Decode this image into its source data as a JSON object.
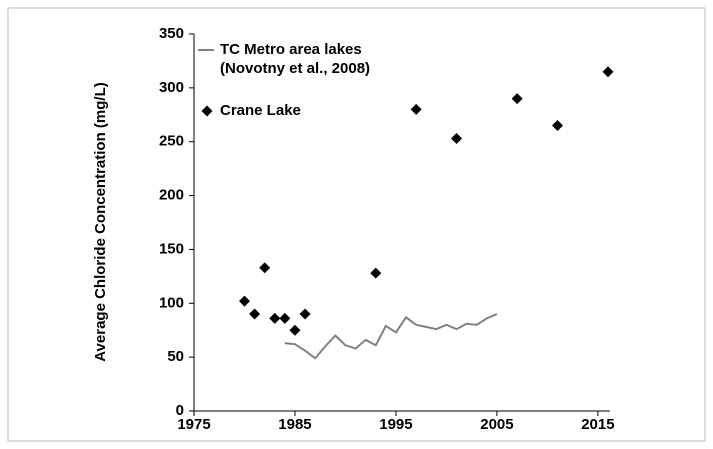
{
  "chart_data": {
    "type": "line_scatter",
    "ylabel": "Average Chloride Concentration (mg/L)",
    "xlim": [
      1975,
      2016
    ],
    "xticks": [
      1975,
      1985,
      1995,
      2005,
      2015
    ],
    "ylim": [
      0,
      350
    ],
    "yticks": [
      0,
      50,
      100,
      150,
      200,
      250,
      300,
      350
    ],
    "grid": false,
    "legend": "upper left",
    "series": [
      {
        "name": "TC Metro area lakes (Novotny et al., 2008)",
        "color": "#808080",
        "kind": "line",
        "x": [
          1984,
          1985,
          1986,
          1987,
          1988,
          1989,
          1990,
          1991,
          1992,
          1993,
          1994,
          1995,
          1996,
          1997,
          1998,
          1999,
          2000,
          2001,
          2002,
          2003,
          2004,
          2005
        ],
        "values": [
          63,
          62,
          56,
          49,
          60,
          70,
          61,
          58,
          66,
          61,
          79,
          73,
          87,
          80,
          78,
          76,
          80,
          76,
          81,
          80,
          86,
          90
        ]
      },
      {
        "name": "Crane Lake",
        "color": "#000000",
        "kind": "scatter",
        "x": [
          1980,
          1981,
          1982,
          1983,
          1984,
          1985,
          1986,
          1993,
          1997,
          2001,
          2007,
          2011,
          2016
        ],
        "values": [
          102,
          90,
          133,
          86,
          86,
          75,
          90,
          128,
          280,
          253,
          290,
          265,
          315
        ]
      }
    ]
  }
}
